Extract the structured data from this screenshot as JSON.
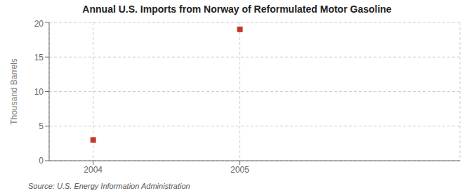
{
  "chart_data": {
    "type": "scatter",
    "title": "Annual U.S. Imports from Norway of Reformulated Motor Gasoline",
    "ylabel": "Thousand Barrels",
    "annotations": [
      "Source: U.S. Energy Information Administration"
    ],
    "x": [
      2004,
      2005
    ],
    "values": [
      3,
      19
    ],
    "color": "#c0392b",
    "marker": "square",
    "xlim": [
      2003.7,
      2006.5
    ],
    "xticks": [
      2004,
      2005
    ],
    "ylim": [
      0,
      20
    ],
    "yticks": [
      0,
      5,
      10,
      15,
      20
    ],
    "grid": true
  }
}
